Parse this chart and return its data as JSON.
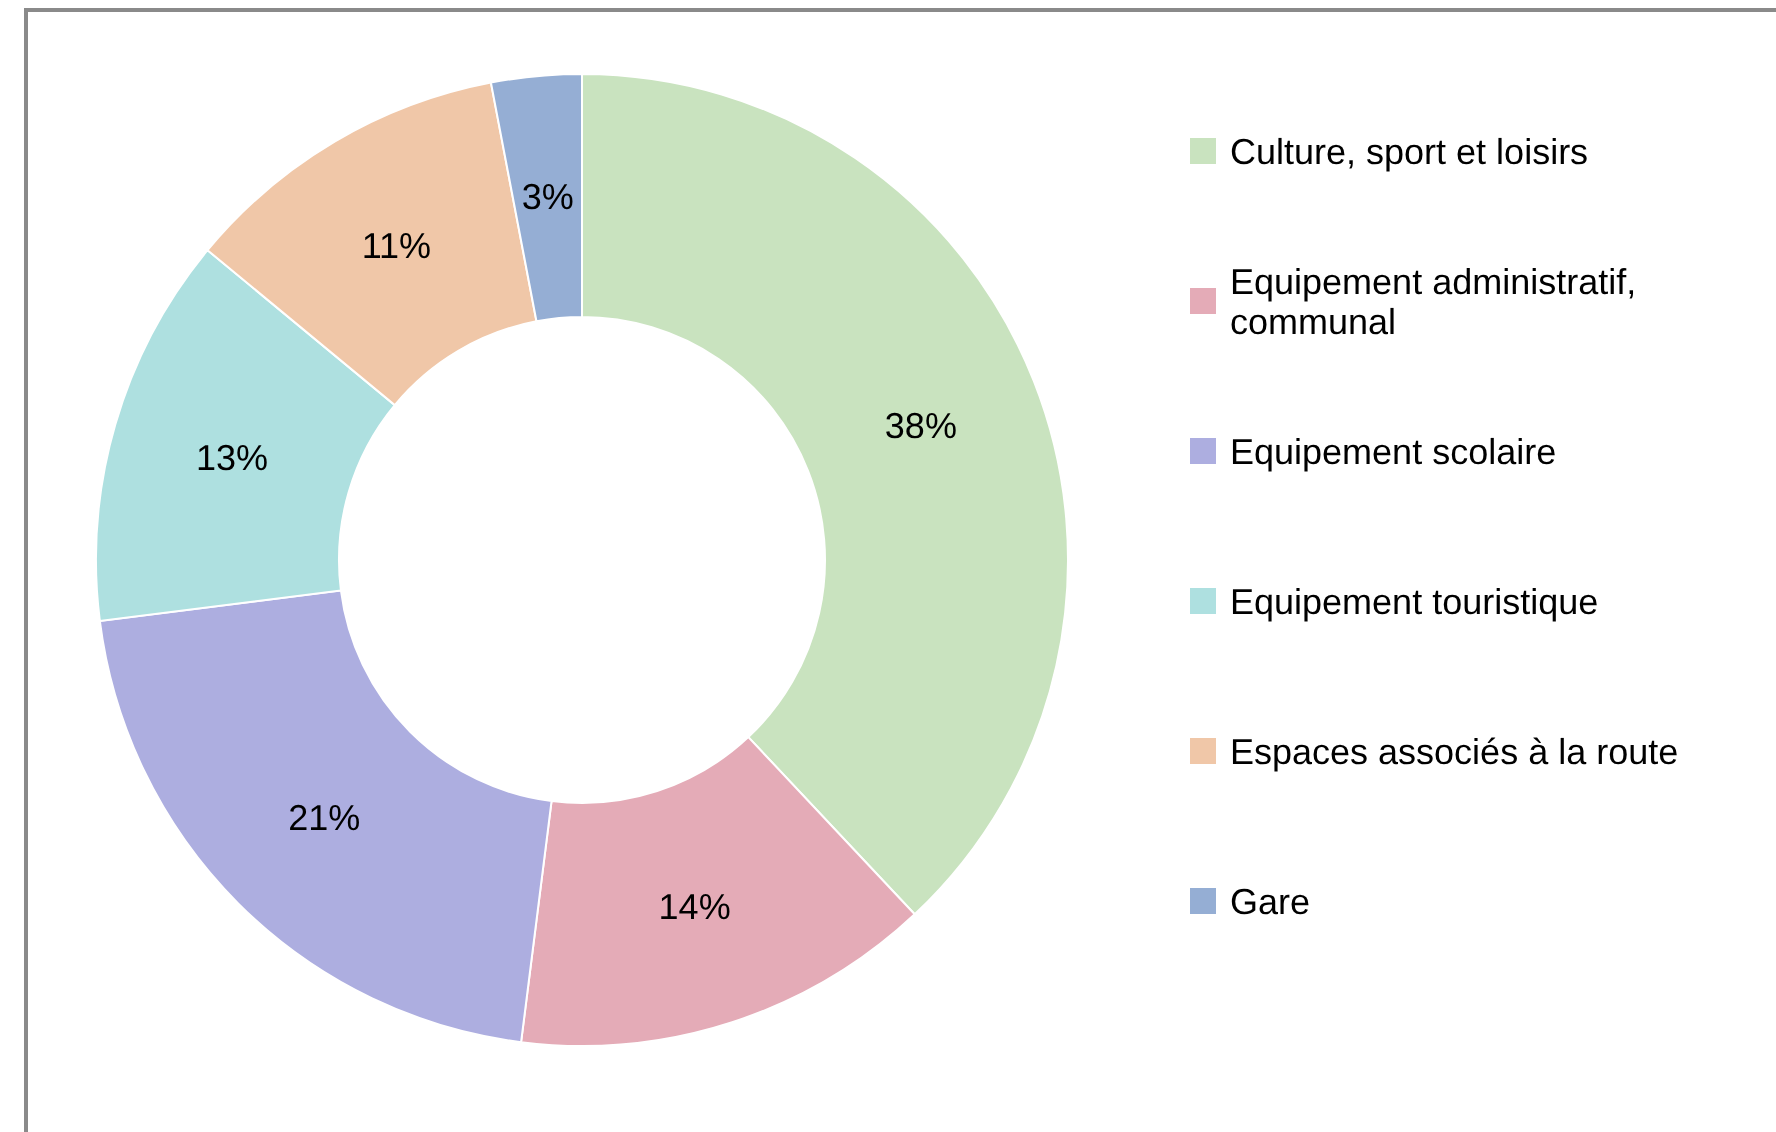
{
  "chart_data": {
    "type": "donut",
    "categories": [
      "Culture, sport et loisirs",
      "Equipement administratif, communal",
      "Equipement scolaire",
      "Equipement touristique",
      "Espaces associés à la route",
      "Gare"
    ],
    "values": [
      38,
      14,
      21,
      13,
      11,
      3
    ],
    "colors": [
      "#c9e3bf",
      "#e4abb7",
      "#adaee0",
      "#aee0e0",
      "#f0c7a8",
      "#95aed4"
    ],
    "value_labels": [
      "38%",
      "14%",
      "21%",
      "13%",
      "11%",
      "3%"
    ],
    "legend": "right"
  }
}
